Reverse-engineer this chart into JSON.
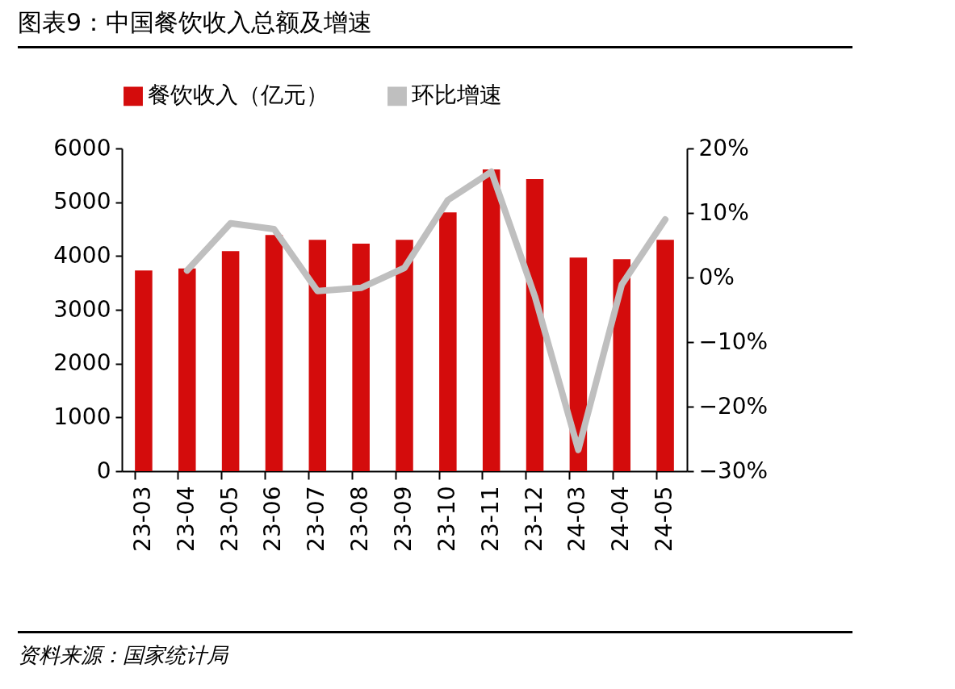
{
  "chart_data": {
    "type": "bar",
    "title": "图表9：中国餐饮收入总额及增速",
    "annotations": [
      "资料来源：国家统计局"
    ],
    "categories": [
      "23-03",
      "23-04",
      "23-05",
      "23-06",
      "23-07",
      "23-08",
      "23-09",
      "23-10",
      "23-11",
      "23-12",
      "24-03",
      "24-04",
      "24-05"
    ],
    "series": [
      {
        "name": "餐饮收入（亿元）",
        "color": "#d40c0c",
        "values": [
          3730,
          3770,
          4090,
          4390,
          4300,
          4230,
          4300,
          4810,
          5610,
          5430,
          3970,
          3940,
          4300
        ]
      },
      {
        "name": "环比增速",
        "type": "line",
        "axis": "y2",
        "color": "#bfbfbf",
        "values": [
          null,
          1.1,
          8.4,
          7.5,
          -2.1,
          -1.6,
          1.5,
          12.0,
          16.4,
          -2.9,
          -26.7,
          -1.1,
          9.0
        ]
      }
    ],
    "ylim": [
      0,
      6000
    ],
    "yticks": [
      0,
      1000,
      2000,
      3000,
      4000,
      5000,
      6000
    ],
    "y2lim": [
      -30,
      20
    ],
    "y2ticks": [
      {
        "value": -30,
        "label": "−30%"
      },
      {
        "value": -20,
        "label": "−20%"
      },
      {
        "value": -10,
        "label": "−10%"
      },
      {
        "value": 0,
        "label": "0%"
      },
      {
        "value": 10,
        "label": "10%"
      },
      {
        "value": 20,
        "label": "20%"
      }
    ],
    "legend": "top"
  }
}
